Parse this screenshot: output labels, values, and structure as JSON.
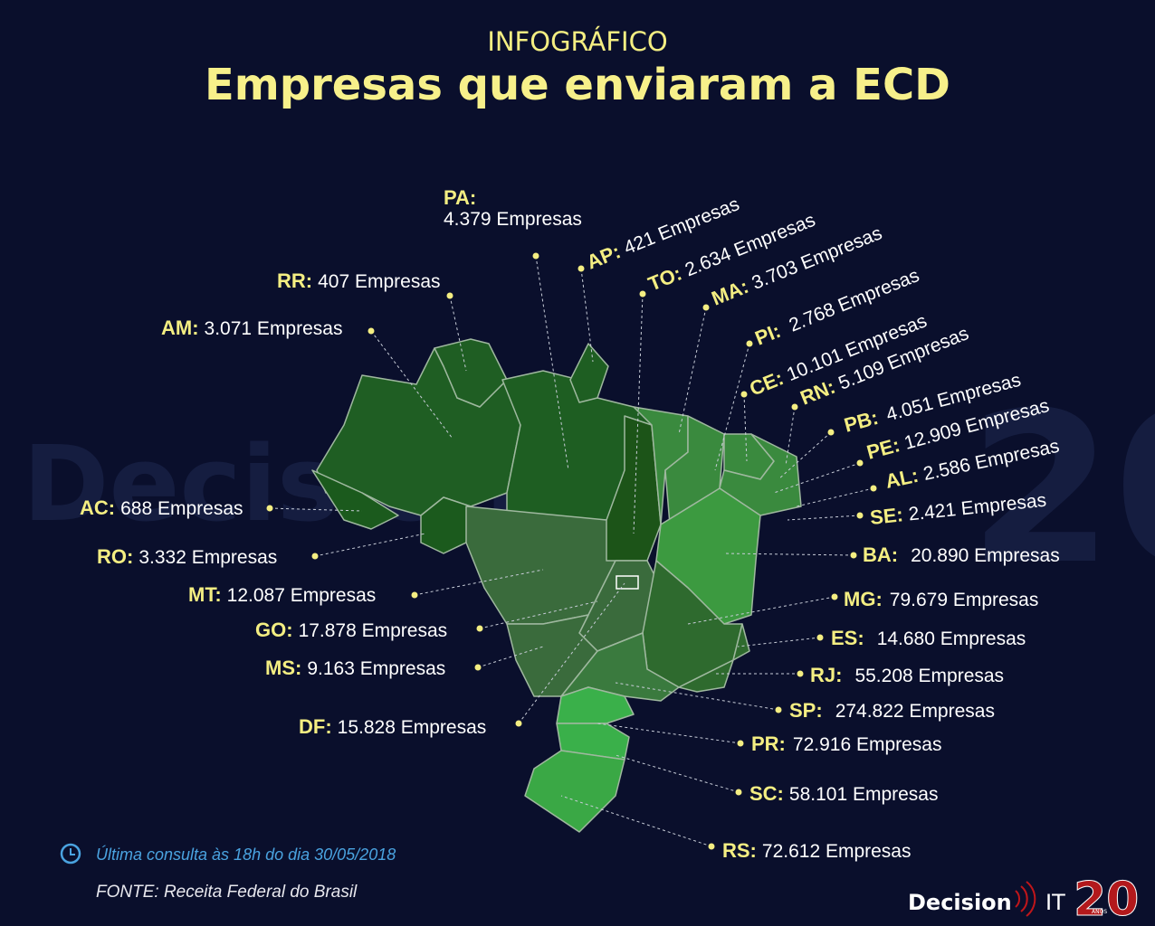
{
  "header": {
    "kicker": "INFOGRÁFICO",
    "title": "Empresas que enviaram a ECD"
  },
  "states": [
    {
      "code": "PA:",
      "count": "4.379 Empresas"
    },
    {
      "code": "RR:",
      "count": "407 Empresas"
    },
    {
      "code": "AM:",
      "count": "3.071 Empresas"
    },
    {
      "code": "AP:",
      "count": "421 Empresas"
    },
    {
      "code": "TO:",
      "count": "2.634 Empresas"
    },
    {
      "code": "MA:",
      "count": "3.703 Empresas"
    },
    {
      "code": "PI:",
      "count": "2.768 Empresas"
    },
    {
      "code": "CE:",
      "count": "10.101 Empresas"
    },
    {
      "code": "RN:",
      "count": "5.109 Empresas"
    },
    {
      "code": "PB:",
      "count": "4.051 Empresas"
    },
    {
      "code": "PE:",
      "count": "12.909 Empresas"
    },
    {
      "code": "AL:",
      "count": "2.586 Empresas"
    },
    {
      "code": "SE:",
      "count": "2.421 Empresas"
    },
    {
      "code": "BA:",
      "count": "20.890 Empresas"
    },
    {
      "code": "MG:",
      "count": "79.679 Empresas"
    },
    {
      "code": "ES:",
      "count": "14.680 Empresas"
    },
    {
      "code": "RJ:",
      "count": "55.208 Empresas"
    },
    {
      "code": "SP:",
      "count": "274.822 Empresas"
    },
    {
      "code": "PR:",
      "count": "72.916 Empresas"
    },
    {
      "code": "SC:",
      "count": "58.101 Empresas"
    },
    {
      "code": "RS:",
      "count": "72.612 Empresas"
    },
    {
      "code": "AC:",
      "count": "688 Empresas"
    },
    {
      "code": "RO:",
      "count": "3.332 Empresas"
    },
    {
      "code": "MT:",
      "count": "12.087 Empresas"
    },
    {
      "code": "GO:",
      "count": "17.878 Empresas"
    },
    {
      "code": "MS:",
      "count": "9.163 Empresas"
    },
    {
      "code": "DF:",
      "count": "15.828 Empresas"
    }
  ],
  "footer": {
    "updated": "Última consulta às 18h do dia 30/05/2018",
    "source": "FONTE: Receita Federal do Brasil"
  },
  "logo": {
    "brand": "Decision",
    "suffix": "IT",
    "years": "20",
    "years_note": "ANOS"
  }
}
